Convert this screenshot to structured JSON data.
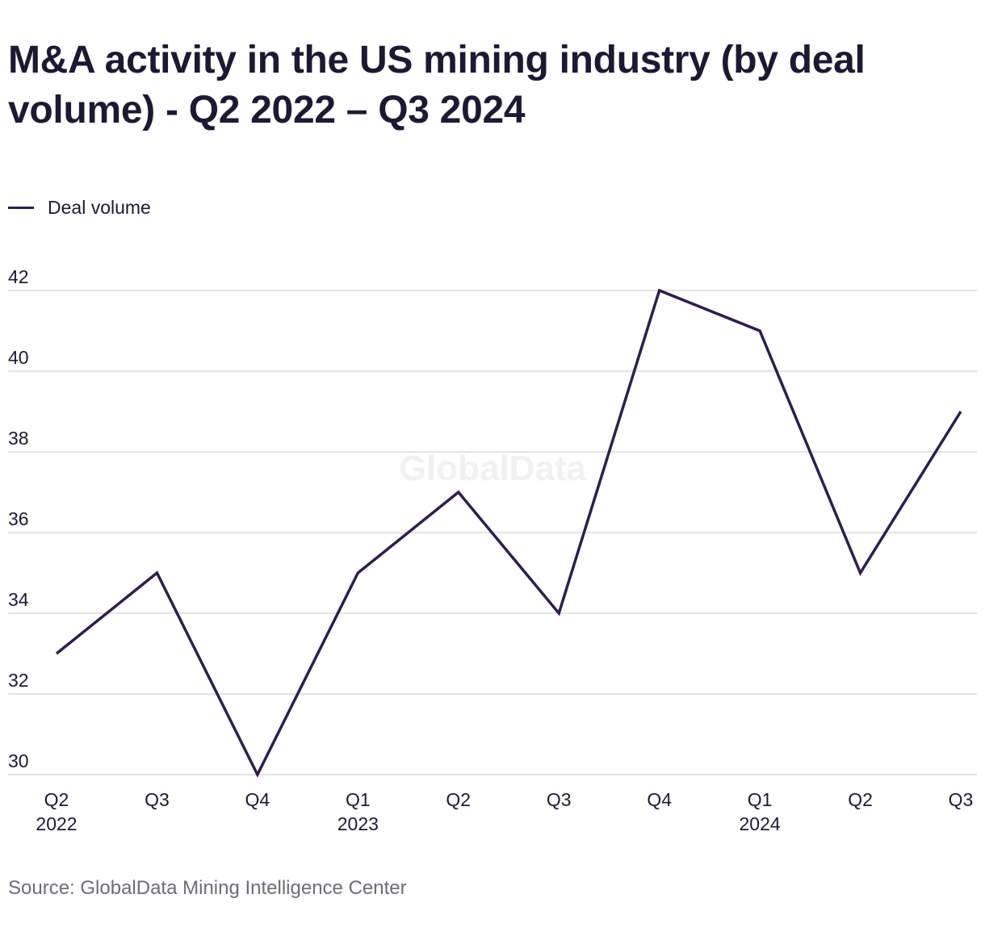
{
  "chart_data": {
    "type": "line",
    "title": "M&A activity in the US mining industry (by deal volume) - Q2 2022 – Q3 2024",
    "categories": [
      {
        "label": "Q2",
        "year": "2022"
      },
      {
        "label": "Q3",
        "year": ""
      },
      {
        "label": "Q4",
        "year": ""
      },
      {
        "label": "Q1",
        "year": "2023"
      },
      {
        "label": "Q2",
        "year": ""
      },
      {
        "label": "Q3",
        "year": ""
      },
      {
        "label": "Q4",
        "year": ""
      },
      {
        "label": "Q1",
        "year": "2024"
      },
      {
        "label": "Q2",
        "year": ""
      },
      {
        "label": "Q3",
        "year": ""
      }
    ],
    "series": [
      {
        "name": "Deal volume",
        "color": "#2d1f4d",
        "values": [
          33,
          35,
          30,
          35,
          37,
          34,
          42,
          41,
          35,
          39
        ]
      }
    ],
    "ylim": [
      30,
      42
    ],
    "yticks": [
      30,
      32,
      34,
      36,
      38,
      40,
      42
    ],
    "grid": true,
    "legend_position": "top-left",
    "watermark": "GlobalData"
  },
  "source": "Source: GlobalData Mining Intelligence Center",
  "colors": {
    "line": "#2d1f4d",
    "grid": "#dcdcdf",
    "text": "#1c1a33",
    "muted_text": "#6d6c78"
  }
}
